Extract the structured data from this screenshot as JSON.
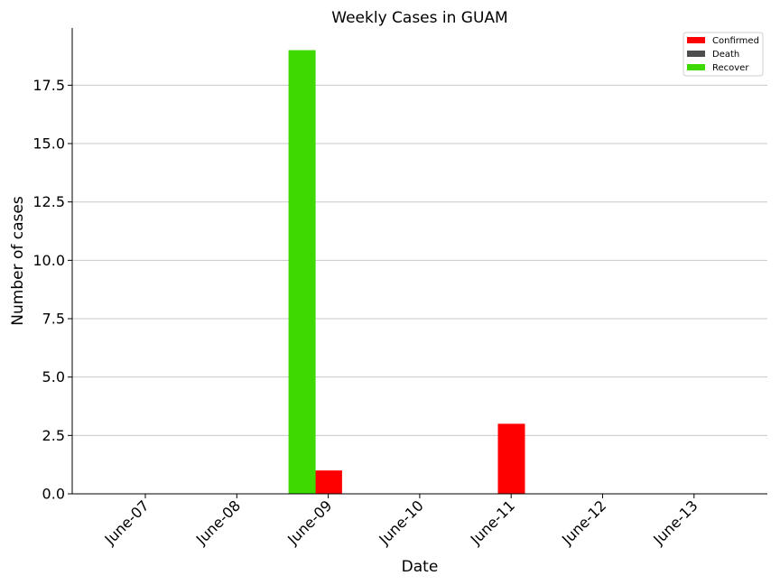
{
  "chart_data": {
    "type": "bar",
    "title": "Weekly Cases in GUAM",
    "xlabel": "Date",
    "ylabel": "Number of cases",
    "categories": [
      "June-07",
      "June-08",
      "June-09",
      "June-10",
      "June-11",
      "June-12",
      "June-13"
    ],
    "series": [
      {
        "name": "Confirmed",
        "color": "#ff0000",
        "values": [
          0,
          0,
          0,
          1,
          0,
          3,
          0
        ]
      },
      {
        "name": "Death",
        "color": "#4d4d4d",
        "values": [
          0,
          0,
          0,
          0,
          0,
          0,
          0
        ]
      },
      {
        "name": "Recover",
        "color": "#3dd900",
        "values": [
          0,
          0,
          19,
          0,
          0,
          0,
          0
        ]
      }
    ],
    "ylim": [
      0,
      19.95
    ],
    "yticks": [
      "0.0",
      "2.5",
      "5.0",
      "7.5",
      "10.0",
      "12.5",
      "15.0",
      "17.5"
    ],
    "grid": "y",
    "legend_position": "top-right"
  }
}
